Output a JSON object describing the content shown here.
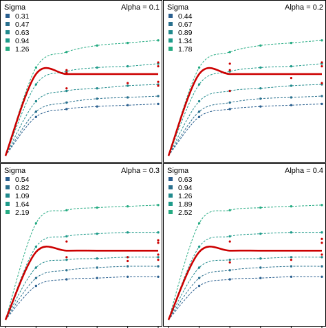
{
  "chart_data": [
    {
      "type": "line",
      "panel_label": "Alpha = 0.1",
      "legend_title": "Sigma",
      "legend_placement": "top-left",
      "grid": false,
      "x": [
        0,
        1,
        2,
        3,
        4,
        5
      ],
      "series": [
        {
          "name": "0.31",
          "color": "#2a5f8f",
          "values": [
            0,
            0.3,
            0.36,
            0.38,
            0.39,
            0.4
          ]
        },
        {
          "name": "0.47",
          "color": "#29708e",
          "values": [
            0,
            0.34,
            0.41,
            0.44,
            0.45,
            0.46
          ]
        },
        {
          "name": "0.63",
          "color": "#218a8d",
          "values": [
            0,
            0.42,
            0.5,
            0.52,
            0.54,
            0.55
          ]
        },
        {
          "name": "0.94",
          "color": "#1e9b8a",
          "values": [
            0,
            0.55,
            0.65,
            0.68,
            0.69,
            0.71
          ]
        },
        {
          "name": "1.26",
          "color": "#25ab82",
          "values": [
            0,
            0.68,
            0.8,
            0.85,
            0.87,
            0.89
          ]
        },
        {
          "name": "",
          "color": "#cc0000",
          "values": [
            0,
            0.63,
            0.63,
            0.63,
            0.63,
            0.63
          ]
        }
      ],
      "points": [
        {
          "x": 2,
          "y": 0.66,
          "color": "#cc0000"
        },
        {
          "x": 2,
          "y": 0.64,
          "color": "#cc0000"
        },
        {
          "x": 2,
          "y": 0.52,
          "color": "#cc0000"
        },
        {
          "x": 4,
          "y": 0.56,
          "color": "#cc0000"
        },
        {
          "x": 5,
          "y": 0.72,
          "color": "#cc0000"
        },
        {
          "x": 5,
          "y": 0.69,
          "color": "#cc0000"
        },
        {
          "x": 5,
          "y": 0.57,
          "color": "#cc0000"
        },
        {
          "x": 5,
          "y": 0.54,
          "color": "#cc0000"
        }
      ]
    },
    {
      "type": "line",
      "panel_label": "Alpha = 0.2",
      "legend_title": "Sigma",
      "legend_placement": "top-left",
      "grid": false,
      "x": [
        0,
        1,
        2,
        3,
        4,
        5
      ],
      "series": [
        {
          "name": "0.44",
          "color": "#2a5f8f",
          "values": [
            0,
            0.3,
            0.36,
            0.38,
            0.39,
            0.4
          ]
        },
        {
          "name": "0.67",
          "color": "#29708e",
          "values": [
            0,
            0.34,
            0.41,
            0.44,
            0.45,
            0.46
          ]
        },
        {
          "name": "0.89",
          "color": "#218a8d",
          "values": [
            0,
            0.42,
            0.5,
            0.52,
            0.54,
            0.55
          ]
        },
        {
          "name": "1.34",
          "color": "#1e9b8a",
          "values": [
            0,
            0.55,
            0.65,
            0.68,
            0.69,
            0.71
          ]
        },
        {
          "name": "1.78",
          "color": "#25ab82",
          "values": [
            0,
            0.68,
            0.8,
            0.85,
            0.87,
            0.89
          ]
        },
        {
          "name": "",
          "color": "#cc0000",
          "values": [
            0,
            0.63,
            0.63,
            0.63,
            0.63,
            0.63
          ]
        }
      ],
      "points": [
        {
          "x": 2,
          "y": 0.71,
          "color": "#cc0000"
        },
        {
          "x": 2,
          "y": 0.66,
          "color": "#cc0000"
        },
        {
          "x": 2,
          "y": 0.5,
          "color": "#cc0000"
        },
        {
          "x": 4,
          "y": 0.6,
          "color": "#cc0000"
        },
        {
          "x": 5,
          "y": 0.72,
          "color": "#cc0000"
        },
        {
          "x": 5,
          "y": 0.69,
          "color": "#cc0000"
        },
        {
          "x": 5,
          "y": 0.56,
          "color": "#cc0000"
        }
      ]
    },
    {
      "type": "line",
      "panel_label": "Alpha = 0.3",
      "legend_title": "Sigma",
      "legend_placement": "top-left",
      "grid": false,
      "x": [
        0,
        1,
        2,
        3,
        4,
        5
      ],
      "series": [
        {
          "name": "0.54",
          "color": "#2a5f8f",
          "values": [
            0,
            0.26,
            0.31,
            0.32,
            0.33,
            0.33
          ]
        },
        {
          "name": "0.82",
          "color": "#29708e",
          "values": [
            0,
            0.32,
            0.38,
            0.4,
            0.41,
            0.41
          ]
        },
        {
          "name": "1.09",
          "color": "#218a8d",
          "values": [
            0,
            0.4,
            0.46,
            0.47,
            0.48,
            0.48
          ]
        },
        {
          "name": "1.64",
          "color": "#1e9b8a",
          "values": [
            0,
            0.56,
            0.64,
            0.66,
            0.67,
            0.67
          ]
        },
        {
          "name": "2.19",
          "color": "#25ab82",
          "values": [
            0,
            0.74,
            0.84,
            0.86,
            0.87,
            0.88
          ]
        },
        {
          "name": "",
          "color": "#cc0000",
          "values": [
            0,
            0.52,
            0.53,
            0.53,
            0.53,
            0.53
          ]
        }
      ],
      "points": [
        {
          "x": 2,
          "y": 0.6,
          "color": "#cc0000"
        },
        {
          "x": 2,
          "y": 0.48,
          "color": "#cc0000"
        },
        {
          "x": 4,
          "y": 0.48,
          "color": "#cc0000"
        },
        {
          "x": 4,
          "y": 0.45,
          "color": "#cc0000"
        },
        {
          "x": 5,
          "y": 0.61,
          "color": "#cc0000"
        },
        {
          "x": 5,
          "y": 0.59,
          "color": "#cc0000"
        },
        {
          "x": 5,
          "y": 0.5,
          "color": "#cc0000"
        },
        {
          "x": 5,
          "y": 0.46,
          "color": "#cc0000"
        }
      ]
    },
    {
      "type": "line",
      "panel_label": "Alpha = 0.4",
      "legend_title": "Sigma",
      "legend_placement": "top-left",
      "grid": false,
      "x": [
        0,
        1,
        2,
        3,
        4,
        5
      ],
      "series": [
        {
          "name": "0.63",
          "color": "#2a5f8f",
          "values": [
            0,
            0.26,
            0.31,
            0.32,
            0.33,
            0.33
          ]
        },
        {
          "name": "0.94",
          "color": "#29708e",
          "values": [
            0,
            0.32,
            0.38,
            0.4,
            0.41,
            0.41
          ]
        },
        {
          "name": "1.26",
          "color": "#218a8d",
          "values": [
            0,
            0.4,
            0.46,
            0.47,
            0.48,
            0.48
          ]
        },
        {
          "name": "1.89",
          "color": "#1e9b8a",
          "values": [
            0,
            0.56,
            0.64,
            0.66,
            0.67,
            0.67
          ]
        },
        {
          "name": "2.52",
          "color": "#25ab82",
          "values": [
            0,
            0.74,
            0.84,
            0.86,
            0.87,
            0.88
          ]
        },
        {
          "name": "",
          "color": "#cc0000",
          "values": [
            0,
            0.52,
            0.53,
            0.53,
            0.53,
            0.53
          ]
        }
      ],
      "points": [
        {
          "x": 2,
          "y": 0.6,
          "color": "#cc0000"
        },
        {
          "x": 2,
          "y": 0.44,
          "color": "#cc0000"
        },
        {
          "x": 4,
          "y": 0.46,
          "color": "#cc0000"
        },
        {
          "x": 5,
          "y": 0.62,
          "color": "#cc0000"
        },
        {
          "x": 5,
          "y": 0.59,
          "color": "#cc0000"
        },
        {
          "x": 5,
          "y": 0.5,
          "color": "#cc0000"
        }
      ]
    }
  ]
}
